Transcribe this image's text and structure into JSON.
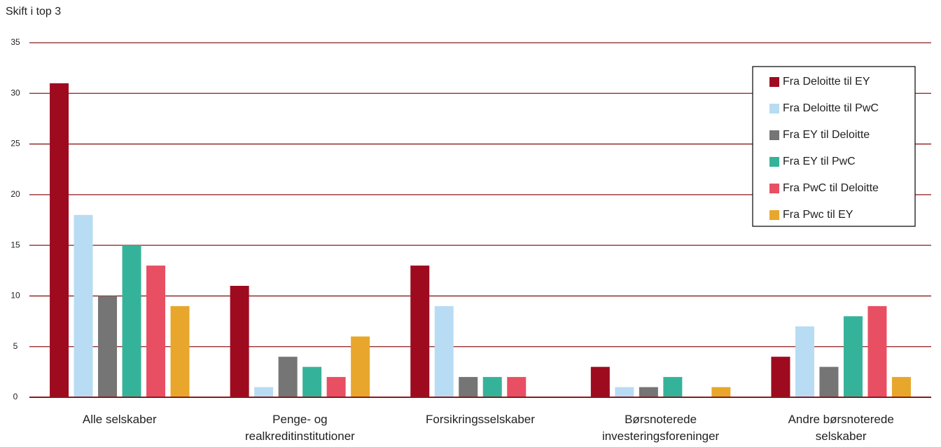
{
  "chart_data": {
    "type": "bar",
    "y_label": "Skift i top 3",
    "categories": [
      "Alle selskaber",
      "Penge- og\nrealkreditinstitutioner",
      "Forsikringsselskaber",
      "Børsnoterede\ninvesteringsforeninger",
      "Andre børsnoterede\nselskaber"
    ],
    "series": [
      {
        "name": "Fra Deloitte til EY",
        "color": "#9e0b1f",
        "values": [
          31,
          11,
          13,
          3,
          4
        ]
      },
      {
        "name": "Fra Deloitte til PwC",
        "color": "#b8dcf3",
        "values": [
          18,
          1,
          9,
          1,
          7
        ]
      },
      {
        "name": "Fra EY til Deloitte",
        "color": "#757575",
        "values": [
          10,
          4,
          2,
          1,
          3
        ]
      },
      {
        "name": "Fra EY til PwC",
        "color": "#35b39a",
        "values": [
          15,
          3,
          2,
          2,
          8
        ]
      },
      {
        "name": "Fra PwC til Deloitte",
        "color": "#e84f63",
        "values": [
          13,
          2,
          2,
          0,
          9
        ]
      },
      {
        "name": "Fra Pwc til EY",
        "color": "#e8a72c",
        "values": [
          9,
          6,
          0,
          1,
          2
        ]
      }
    ],
    "ylim": [
      0,
      35
    ],
    "yticks": [
      0,
      5,
      10,
      15,
      20,
      25,
      30,
      35
    ],
    "grid": true,
    "grid_color": "#8b1a1a",
    "legend": "upper right"
  }
}
